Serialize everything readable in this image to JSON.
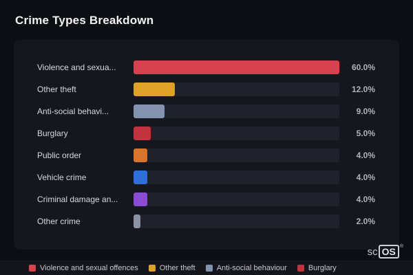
{
  "page": {
    "title": "Crime Types Breakdown"
  },
  "chart_data": {
    "type": "bar",
    "orientation": "horizontal",
    "title": "Crime Types Breakdown",
    "categories": [
      "Violence and sexua...",
      "Other theft",
      "Anti-social behavi...",
      "Burglary",
      "Public order",
      "Vehicle crime",
      "Criminal damage an...",
      "Other crime"
    ],
    "values": [
      60.0,
      12.0,
      9.0,
      5.0,
      4.0,
      4.0,
      4.0,
      2.0
    ],
    "value_labels": [
      "60.0%",
      "12.0%",
      "9.0%",
      "5.0%",
      "4.0%",
      "4.0%",
      "4.0%",
      "2.0%"
    ],
    "colors": [
      "#d84150",
      "#dfa128",
      "#8393ad",
      "#c2333f",
      "#d9752a",
      "#2f6fdb",
      "#8c4bd4",
      "#8b93a1"
    ],
    "xlim": [
      0,
      60
    ],
    "max_value": 60,
    "grid": false,
    "legend_position": "bottom",
    "track_color": "#20222b"
  },
  "legend": {
    "items": [
      {
        "label": "Violence and sexual offences",
        "color": "#d84150"
      },
      {
        "label": "Other theft",
        "color": "#dfa128"
      },
      {
        "label": "Anti-social behaviour",
        "color": "#8393ad"
      },
      {
        "label": "Burglary",
        "color": "#c2333f"
      }
    ]
  },
  "branding": {
    "prefix": "sc",
    "box": "OS",
    "registered": "®"
  }
}
